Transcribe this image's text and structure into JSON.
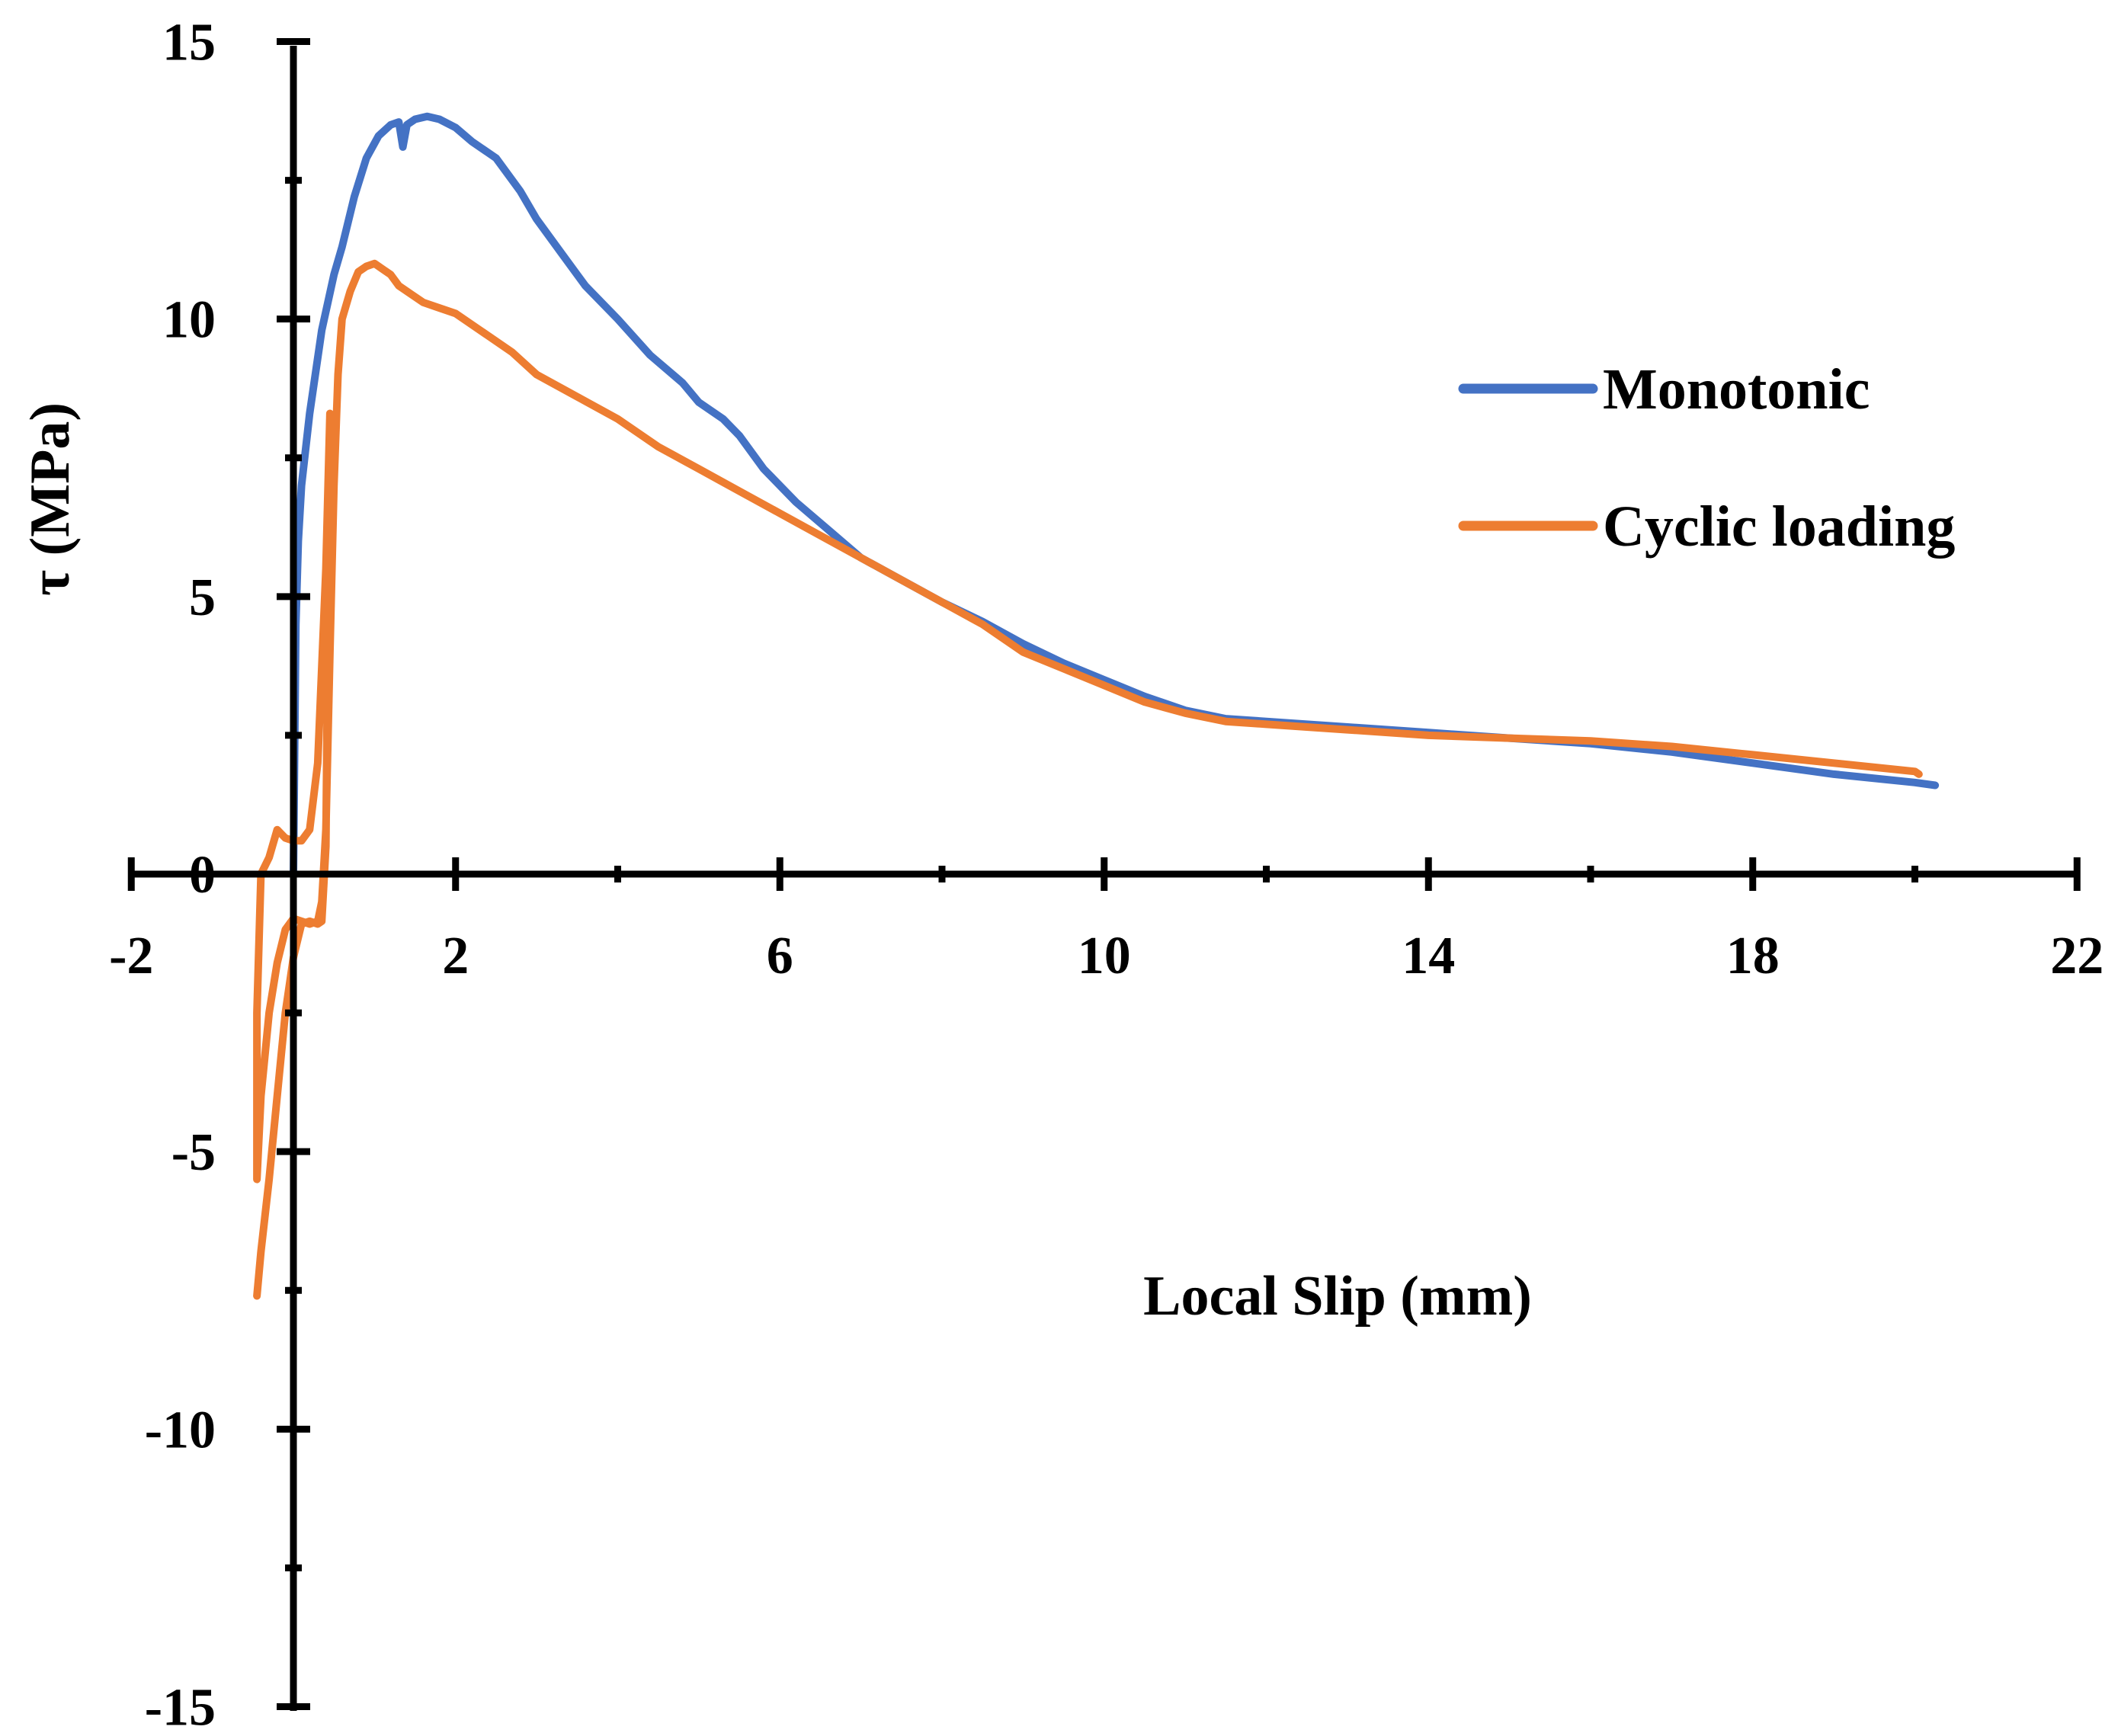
{
  "chart_data": {
    "type": "line",
    "title": "",
    "xlabel": "Local Slip (mm)",
    "ylabel": "τ (MPa)",
    "xlim": [
      -2,
      22
    ],
    "ylim": [
      -15,
      15
    ],
    "x_major_ticks": [
      -2,
      2,
      6,
      10,
      14,
      18,
      22
    ],
    "x_minor_ticks": [
      0,
      4,
      8,
      12,
      16,
      20
    ],
    "y_major_ticks": [
      15,
      10,
      5,
      0,
      -5,
      -10,
      -15
    ],
    "y_minor_ticks": [
      12.5,
      7.5,
      2.5,
      -2.5,
      -7.5,
      -12.5
    ],
    "x_tick_labels": [
      "-2",
      "2",
      "6",
      "10",
      "14",
      "18",
      "22"
    ],
    "y_tick_labels": [
      "15",
      "10",
      "5",
      "0",
      "-5",
      "-10",
      "-15"
    ],
    "legend_position": "right",
    "series": [
      {
        "name": "Monotonic",
        "color": "#4472C4",
        "x": [
          0.0,
          0.03,
          0.06,
          0.1,
          0.2,
          0.35,
          0.5,
          0.6,
          0.75,
          0.9,
          1.05,
          1.2,
          1.3,
          1.35,
          1.4,
          1.5,
          1.65,
          1.8,
          2.0,
          2.2,
          2.5,
          2.8,
          3.0,
          3.3,
          3.6,
          4.0,
          4.4,
          4.8,
          5.0,
          5.3,
          5.5,
          5.8,
          6.2,
          6.6,
          7.0,
          7.5,
          8.0,
          8.5,
          9.0,
          9.5,
          10.0,
          10.5,
          11.0,
          11.5,
          12.0,
          13.0,
          14.0,
          15.0,
          16.0,
          17.0,
          18.0,
          19.0,
          20.0,
          20.25
        ],
        "y": [
          0.0,
          4.5,
          6.0,
          7.0,
          8.3,
          9.8,
          10.8,
          11.3,
          12.2,
          12.9,
          13.3,
          13.5,
          13.55,
          13.1,
          13.5,
          13.6,
          13.65,
          13.6,
          13.45,
          13.2,
          12.9,
          12.3,
          11.8,
          11.2,
          10.6,
          10.0,
          9.35,
          8.85,
          8.5,
          8.2,
          7.9,
          7.3,
          6.7,
          6.2,
          5.7,
          5.3,
          4.9,
          4.55,
          4.15,
          3.8,
          3.5,
          3.2,
          2.95,
          2.8,
          2.75,
          2.65,
          2.55,
          2.45,
          2.35,
          2.2,
          2.0,
          1.8,
          1.65,
          1.6
        ]
      },
      {
        "name": "Cyclic loading",
        "color": "#ED7D31",
        "x": [
          -0.45,
          -0.4,
          -0.3,
          -0.2,
          -0.1,
          0.0,
          0.1,
          0.2,
          0.3,
          0.35,
          0.4,
          0.45,
          0.4,
          0.3,
          0.2,
          0.1,
          0.0,
          -0.1,
          -0.2,
          -0.3,
          -0.4,
          -0.45,
          -0.45,
          -0.4,
          -0.3,
          -0.2,
          -0.1,
          0.0,
          0.1,
          0.2,
          0.3,
          0.35,
          0.4,
          0.45,
          0.5,
          0.55,
          0.6,
          0.7,
          0.8,
          0.9,
          1.0,
          1.1,
          1.2,
          1.3,
          1.4,
          1.6,
          1.8,
          2.0,
          2.3,
          2.7,
          3.0,
          3.5,
          4.0,
          4.5,
          5.0,
          5.5,
          6.0,
          6.5,
          7.0,
          7.5,
          8.0,
          8.5,
          9.0,
          9.5,
          10.0,
          10.5,
          11.0,
          11.5,
          12.0,
          13.0,
          14.0,
          15.0,
          16.0,
          17.0,
          18.0,
          19.0,
          20.0,
          20.05
        ],
        "y": [
          -7.6,
          -6.8,
          -5.5,
          -4.0,
          -2.5,
          -1.5,
          -0.9,
          -0.85,
          -0.9,
          -0.85,
          0.5,
          8.3,
          5.5,
          2.0,
          0.8,
          0.6,
          0.6,
          0.65,
          0.8,
          0.3,
          0.0,
          -2.5,
          -5.5,
          -4.0,
          -2.5,
          -1.6,
          -1.0,
          -0.8,
          -0.85,
          -0.9,
          -0.85,
          -0.5,
          0.8,
          4.0,
          7.0,
          9.0,
          10.0,
          10.5,
          10.85,
          10.95,
          11.0,
          10.9,
          10.8,
          10.6,
          10.5,
          10.3,
          10.2,
          10.1,
          9.8,
          9.4,
          9.0,
          8.6,
          8.2,
          7.7,
          7.3,
          6.9,
          6.5,
          6.1,
          5.7,
          5.3,
          4.9,
          4.5,
          4.0,
          3.7,
          3.4,
          3.1,
          2.9,
          2.75,
          2.7,
          2.6,
          2.5,
          2.45,
          2.4,
          2.3,
          2.15,
          2.0,
          1.85,
          1.8
        ]
      }
    ]
  }
}
